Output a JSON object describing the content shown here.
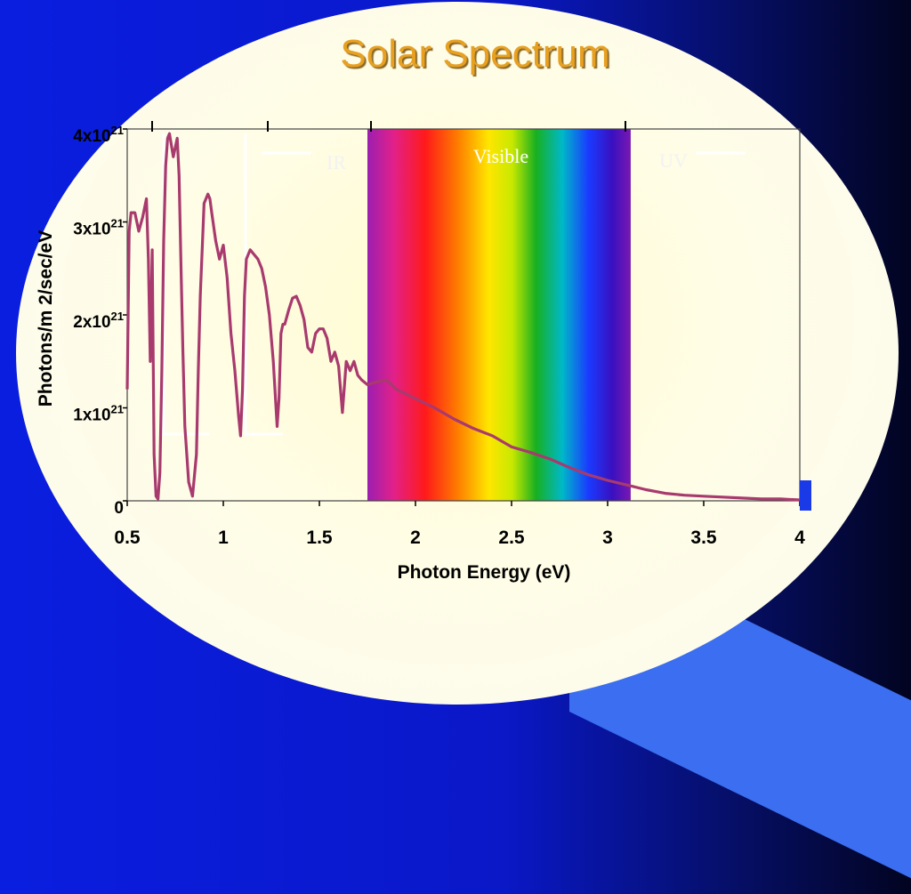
{
  "slide": {
    "title": "Solar Spectrum"
  },
  "colors": {
    "curve": "#a83a6e",
    "background_left": "#0a1ee0",
    "background_right": "#020420",
    "title": "#e8a020"
  },
  "chart_data": {
    "type": "line",
    "title": "Solar Spectrum",
    "xlabel": "Photon Energy (eV)",
    "ylabel": "Photons/m 2/sec/eV",
    "xlim": [
      0.5,
      4
    ],
    "ylim": [
      0,
      4
    ],
    "x_ticks": [
      0.5,
      1,
      1.5,
      2,
      2.5,
      3,
      3.5,
      4
    ],
    "x_tick_labels": [
      "0.5",
      "1",
      "1.5",
      "2",
      "2.5",
      "3",
      "3.5",
      "4"
    ],
    "y_ticks": [
      {
        "value": 0,
        "base": "0",
        "exp": ""
      },
      {
        "value": 1,
        "base": "1x10",
        "exp": "21"
      },
      {
        "value": 2,
        "base": "2x10",
        "exp": "21"
      },
      {
        "value": 3,
        "base": "3x10",
        "exp": "21"
      },
      {
        "value": 4,
        "base": "4x10",
        "exp": "21"
      }
    ],
    "y_unit_multiplier": "x10^21",
    "grid": false,
    "bands": [
      {
        "label": "IR",
        "color": "#f2f2f2"
      },
      {
        "label": "Visible",
        "x_start": 1.75,
        "x_end": 3.12,
        "color": "#ffffff"
      },
      {
        "label": "UV",
        "color": "#f2f2f2"
      }
    ],
    "series": [
      {
        "x": [
          0.5,
          0.51,
          0.52,
          0.54,
          0.56,
          0.58,
          0.6,
          0.61,
          0.62,
          0.63,
          0.64,
          0.65,
          0.66,
          0.67,
          0.68,
          0.69,
          0.7,
          0.71,
          0.72,
          0.74,
          0.76,
          0.77,
          0.78,
          0.79,
          0.8,
          0.82,
          0.84,
          0.86,
          0.87,
          0.88,
          0.9,
          0.92,
          0.93,
          0.94,
          0.96,
          0.98,
          1.0,
          1.02,
          1.04,
          1.06,
          1.08,
          1.09,
          1.1,
          1.11,
          1.12,
          1.14,
          1.16,
          1.18,
          1.2,
          1.22,
          1.24,
          1.26,
          1.28,
          1.29,
          1.3,
          1.31,
          1.32,
          1.34,
          1.36,
          1.38,
          1.4,
          1.42,
          1.44,
          1.46,
          1.48,
          1.5,
          1.52,
          1.54,
          1.56,
          1.58,
          1.6,
          1.62,
          1.64,
          1.66,
          1.68,
          1.7,
          1.72,
          1.75,
          1.8,
          1.85,
          1.9,
          1.95,
          2.0,
          2.1,
          2.2,
          2.3,
          2.4,
          2.5,
          2.6,
          2.7,
          2.8,
          2.9,
          3.0,
          3.1,
          3.2,
          3.3,
          3.4,
          3.5,
          3.6,
          3.7,
          3.8,
          3.9,
          4.0
        ],
        "values": [
          1.2,
          2.9,
          3.1,
          3.1,
          2.9,
          3.05,
          3.25,
          2.6,
          1.5,
          2.7,
          0.5,
          0.05,
          0.02,
          0.3,
          1.4,
          2.8,
          3.6,
          3.9,
          3.95,
          3.7,
          3.9,
          3.5,
          2.5,
          1.6,
          0.8,
          0.2,
          0.05,
          0.5,
          1.4,
          2.2,
          3.2,
          3.3,
          3.25,
          3.1,
          2.8,
          2.6,
          2.75,
          2.4,
          1.8,
          1.4,
          0.9,
          0.7,
          1.2,
          2.2,
          2.6,
          2.7,
          2.65,
          2.6,
          2.5,
          2.3,
          2.0,
          1.5,
          0.8,
          1.1,
          1.8,
          1.9,
          1.9,
          2.05,
          2.18,
          2.2,
          2.1,
          1.95,
          1.65,
          1.6,
          1.8,
          1.85,
          1.85,
          1.75,
          1.5,
          1.6,
          1.45,
          0.95,
          1.5,
          1.4,
          1.5,
          1.35,
          1.3,
          1.25,
          1.28,
          1.3,
          1.2,
          1.15,
          1.1,
          1.0,
          0.88,
          0.78,
          0.7,
          0.58,
          0.52,
          0.45,
          0.36,
          0.28,
          0.22,
          0.17,
          0.12,
          0.08,
          0.06,
          0.05,
          0.04,
          0.03,
          0.02,
          0.02,
          0.01
        ]
      }
    ]
  }
}
